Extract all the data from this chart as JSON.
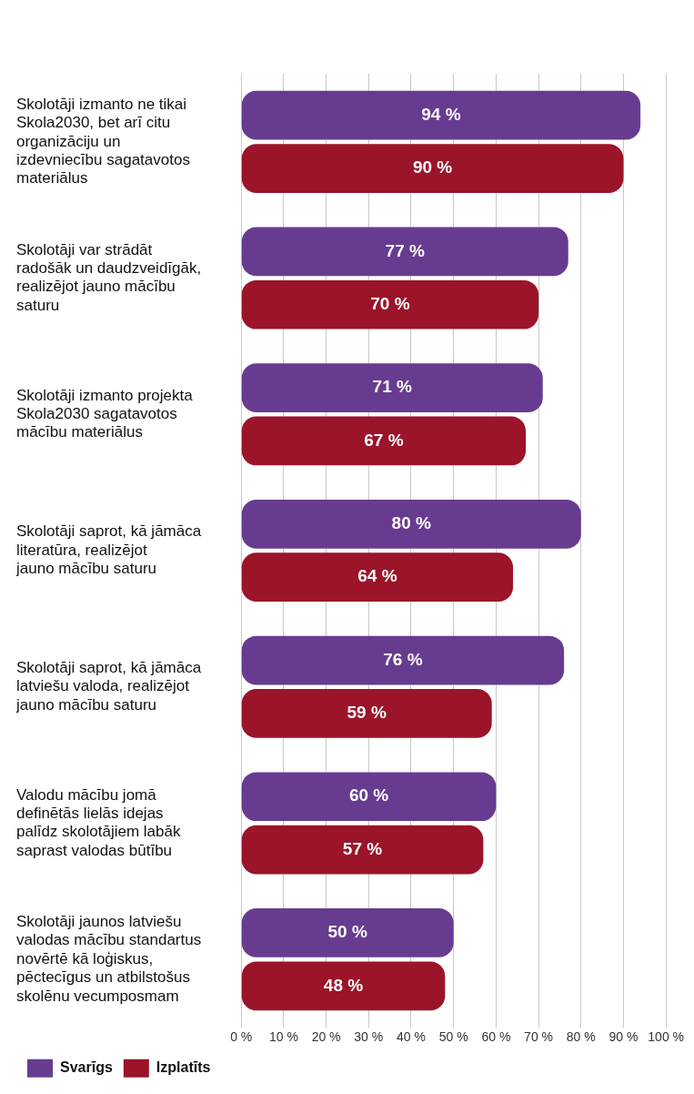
{
  "chart_data": {
    "type": "bar",
    "orientation": "horizontal",
    "categories": [
      "Skolotāji izmanto ne tikai Skola2030, bet arī citu organizāciju un izdevniecību sagatavotos materiālus",
      "Skolotāji var strādāt radošāk un daudzveidīgāk, realizējot jauno mācību saturu",
      "Skolotāji izmanto projekta Skola2030 sagatavotos mācību materiālus",
      "Skolotāji saprot, kā jāmāca literatūra, realizējot jauno mācību saturu",
      "Skolotāji saprot, kā jāmāca latviešu valoda, realizējot jauno mācību saturu",
      "Valodu mācību jomā definētās lielās idejas palīdz skolotājiem labāk saprast valodas būtību",
      "Skolotāji jaunos latviešu valodas mācību standartus novērtē kā loģiskus, pēctecīgus un atbilstošus skolēnu vecumposmam"
    ],
    "series": [
      {
        "name": "Svarīgs",
        "color": "#673c90",
        "values": [
          94,
          77,
          71,
          80,
          76,
          60,
          50
        ],
        "value_labels": [
          "94 %",
          "77 %",
          "71 %",
          "80 %",
          "76 %",
          "60 %",
          "50 %"
        ]
      },
      {
        "name": "Izplatīts",
        "color": "#9b1429",
        "values": [
          90,
          70,
          67,
          64,
          59,
          57,
          48
        ],
        "value_labels": [
          "90 %",
          "70 %",
          "67 %",
          "64 %",
          "59 %",
          "57 %",
          "48 %"
        ]
      }
    ],
    "xlim": [
      0,
      100
    ],
    "xticks": [
      {
        "value": 0,
        "label": "0 %"
      },
      {
        "value": 10,
        "label": "10 %"
      },
      {
        "value": 20,
        "label": "20 %"
      },
      {
        "value": 30,
        "label": "30 %"
      },
      {
        "value": 40,
        "label": "40 %"
      },
      {
        "value": 50,
        "label": "50 %"
      },
      {
        "value": 60,
        "label": "60 %"
      },
      {
        "value": 70,
        "label": "70 %"
      },
      {
        "value": 80,
        "label": "80 %"
      },
      {
        "value": 90,
        "label": "90 %"
      },
      {
        "value": 100,
        "label": "100 %"
      }
    ],
    "grid": "x",
    "legend": "bottom left"
  }
}
